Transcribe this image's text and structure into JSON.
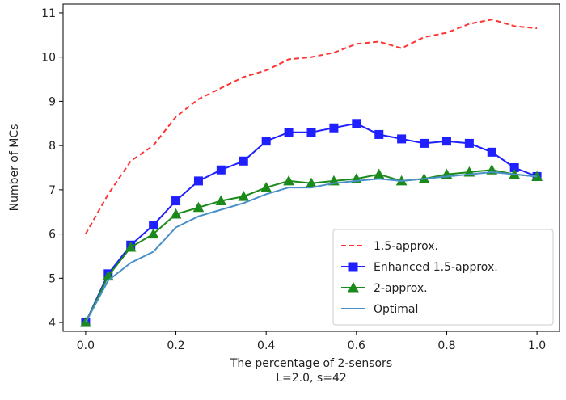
{
  "chart_data": {
    "type": "line",
    "title": "",
    "xlabel": "The percentage of 2-sensors",
    "xlabel_sub": "L=2.0, s=42",
    "ylabel": "Number of MCs",
    "xlim": [
      -0.05,
      1.05
    ],
    "ylim": [
      3.8,
      11.2
    ],
    "xticks": [
      0.0,
      0.2,
      0.4,
      0.6,
      0.8,
      1.0
    ],
    "xtick_labels": [
      "0.0",
      "0.2",
      "0.4",
      "0.6",
      "0.8",
      "1.0"
    ],
    "yticks": [
      4,
      5,
      6,
      7,
      8,
      9,
      10,
      11
    ],
    "ytick_labels": [
      "4",
      "5",
      "6",
      "7",
      "8",
      "9",
      "10",
      "11"
    ],
    "grid": false,
    "legend_position": "lower-right",
    "x": [
      0.0,
      0.05,
      0.1,
      0.15,
      0.2,
      0.25,
      0.3,
      0.35,
      0.4,
      0.45,
      0.5,
      0.55,
      0.6,
      0.65,
      0.7,
      0.75,
      0.8,
      0.85,
      0.9,
      0.95,
      1.0
    ],
    "series": [
      {
        "name": "1.5-approx.",
        "color": "#ff3333",
        "style": "dashed",
        "marker": "none",
        "values": [
          6.0,
          6.9,
          7.65,
          8.0,
          8.65,
          9.05,
          9.3,
          9.55,
          9.7,
          9.95,
          10.0,
          10.1,
          10.3,
          10.35,
          10.2,
          10.45,
          10.55,
          10.75,
          10.85,
          10.7,
          10.65
        ]
      },
      {
        "name": "Enhanced 1.5-approx.",
        "color": "#1f1fff",
        "style": "solid",
        "marker": "square",
        "values": [
          4.0,
          5.1,
          5.75,
          6.2,
          6.75,
          7.2,
          7.45,
          7.65,
          8.1,
          8.3,
          8.3,
          8.4,
          8.5,
          8.25,
          8.15,
          8.05,
          8.1,
          8.05,
          7.85,
          7.5,
          7.3
        ]
      },
      {
        "name": "2-approx.",
        "color": "#1a8a1a",
        "style": "solid",
        "marker": "triangle",
        "values": [
          4.0,
          5.05,
          5.7,
          6.0,
          6.45,
          6.6,
          6.75,
          6.85,
          7.05,
          7.2,
          7.15,
          7.2,
          7.25,
          7.35,
          7.2,
          7.25,
          7.35,
          7.4,
          7.45,
          7.35,
          7.3
        ]
      },
      {
        "name": "Optimal",
        "color": "#4a90c8",
        "style": "solid",
        "marker": "none",
        "values": [
          4.0,
          4.95,
          5.35,
          5.6,
          6.15,
          6.4,
          6.55,
          6.7,
          6.9,
          7.05,
          7.05,
          7.15,
          7.2,
          7.25,
          7.2,
          7.25,
          7.3,
          7.35,
          7.4,
          7.35,
          7.3
        ]
      }
    ]
  }
}
